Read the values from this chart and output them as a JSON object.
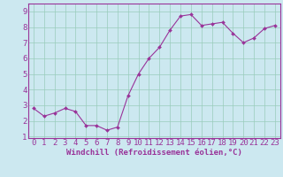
{
  "x": [
    0,
    1,
    2,
    3,
    4,
    5,
    6,
    7,
    8,
    9,
    10,
    11,
    12,
    13,
    14,
    15,
    16,
    17,
    18,
    19,
    20,
    21,
    22,
    23
  ],
  "y": [
    2.8,
    2.3,
    2.5,
    2.8,
    2.6,
    1.7,
    1.7,
    1.4,
    1.6,
    3.6,
    5.0,
    6.0,
    6.7,
    7.8,
    8.7,
    8.8,
    8.1,
    8.2,
    8.3,
    7.6,
    7.0,
    7.3,
    7.9,
    8.1
  ],
  "line_color": "#993399",
  "marker": "D",
  "marker_size": 2,
  "background_color": "#cce8f0",
  "grid_color": "#99ccbb",
  "xlabel": "Windchill (Refroidissement éolien,°C)",
  "xlabel_color": "#993399",
  "tick_color": "#993399",
  "xlim": [
    -0.5,
    23.5
  ],
  "ylim": [
    0.9,
    9.5
  ],
  "yticks": [
    1,
    2,
    3,
    4,
    5,
    6,
    7,
    8,
    9
  ],
  "xticks": [
    0,
    1,
    2,
    3,
    4,
    5,
    6,
    7,
    8,
    9,
    10,
    11,
    12,
    13,
    14,
    15,
    16,
    17,
    18,
    19,
    20,
    21,
    22,
    23
  ],
  "spine_color": "#993399",
  "font_size": 6.5,
  "xlabel_fontsize": 6.5
}
